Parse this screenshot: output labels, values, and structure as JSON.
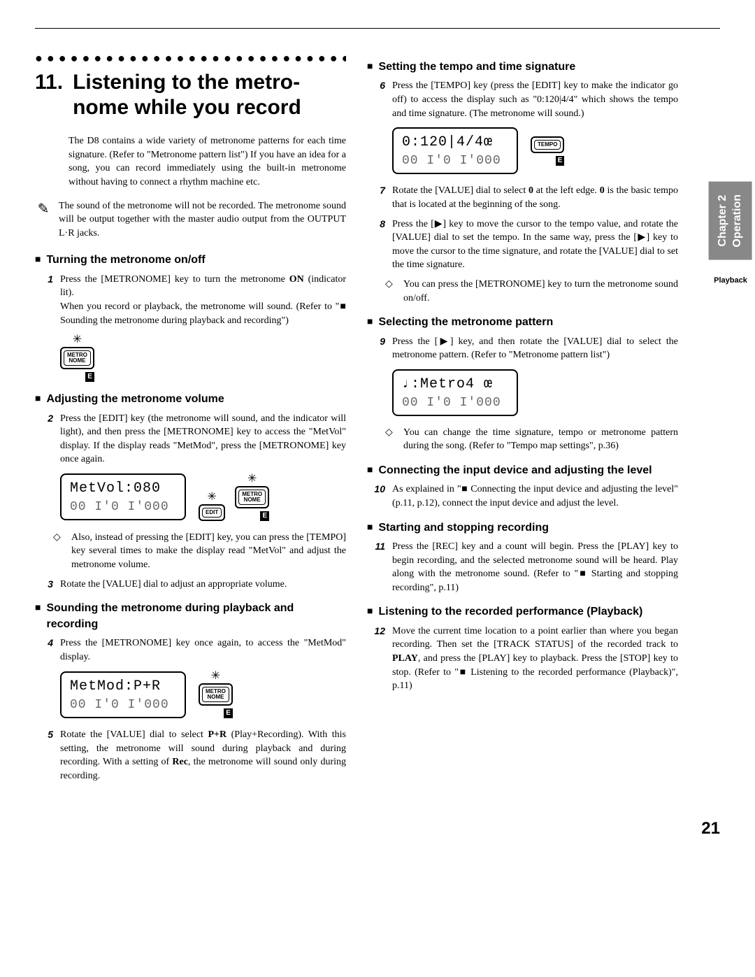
{
  "chapter_tab_line1": "Chapter 2",
  "chapter_tab_line2": "Operation",
  "playback_label": "Playback",
  "page_number": "21",
  "dots": "●●●●●●●●●●●●●●●●●●●●●●●●●●●●●●",
  "section": {
    "number": "11.",
    "title": "Listening to the metro­nome while you record"
  },
  "intro": "The D8 contains a wide variety of metronome pat­terns for each time signature. (Refer to \"Metro­nome pattern list\") If you have an idea for a song, you can record immediately using the built-in met­ronome without having to connect a rhythm machine etc.",
  "note": "The sound of the metronome will not be recorded. The metronome sound will be output together with the master audio output from the OUTPUT L·R jacks.",
  "h_turn": "Turning the metronome on/off",
  "step1a": "Press the [METRONOME] key to turn the metro­nome ",
  "step1b": "ON",
  "step1c": " (indicator lit).",
  "step1d": "When you record or playback, the metronome will sound. (Refer to \"■ Sounding the metronome dur­ing playback and recording\")",
  "h_adjust": "Adjusting the metronome volume",
  "step2": "Press the [EDIT] key (the metronome will sound, and the indicator will light), and then press the [METRONOME] key to access the \"MetVol\" dis­play. If the display reads \"MetMod\", press the [METRONOME] key once again.",
  "lcd_metvol": "MetVol:080",
  "lcd_counter": "00 I'0 I'000",
  "tip2": "Also, instead of pressing the [EDIT] key, you can press the [TEMPO] key several times to make the display read \"MetVol\" and adjust the metronome volume.",
  "step3": "Rotate the [VALUE] dial to adjust an appropriate volume.",
  "h_sound": "Sounding the metronome during playback and recording",
  "step4": "Press the [METRONOME] key once again, to access the \"MetMod\" display.",
  "lcd_metmod": "MetMod:P+R",
  "step5a": "Rotate the [VALUE] dial to select ",
  "step5b": "P+R",
  "step5c": " (Play+Recording). With this setting, the metro­nome will sound during playback and during recording. With a setting of ",
  "step5d": "Rec",
  "step5e": ", the metronome will sound only during recording.",
  "h_tempo": "Setting the tempo and time signature",
  "step6": "Press the [TEMPO] key (press the [EDIT] key to make the indicator go off) to access the display such as \"0:120|4/4\" which shows the tempo and time signature. (The metronome will sound.)",
  "lcd_tempo": "0:120|4/4œ",
  "step7a": "Rotate the [VALUE] dial to select ",
  "step7b": "0",
  "step7c": " at the left edge. ",
  "step7d": "0",
  "step7e": " is the basic tempo that is located at the beginning of the song.",
  "step8": "Press the [▶] key to move the cursor to the tempo value, and rotate the [VALUE] dial to set the tempo. In the same way, press the [▶] key to move the cursor to the time signature, and rotate the [VALUE] dial to set the time signature.",
  "tip8": "You can press the [METRONOME] key to turn the metronome sound on/off.",
  "h_select": "Selecting the metronome pattern",
  "step9": "Press the [▶] key, and then rotate the [VALUE] dial to select the metronome pattern. (Refer to \"Metronome pattern list\")",
  "lcd_metro4": "♩:Metro4 œ",
  "tip9": "You can change the time signature, tempo or met­ronome pattern during the song. (Refer to \"Tempo map settings\", p.36)",
  "h_connect": "Connecting the input device and adjusting the level",
  "step10": "As explained in \"■ Connecting the input device and adjusting the level\" (p.11, p.12), connect the input device and adjust the level.",
  "h_start": "Starting and stopping recording",
  "step11": "Press the [REC] key and a count will begin. Press the [PLAY] key to begin recording, and the selected metronome sound will be heard. Play along with the metronome sound. (Refer to \"■ Starting and stopping recording\", p.11)",
  "h_listen": "Listening to the recorded performance (Play­back)",
  "step12a": "Move the current time location to a point earlier than where you began recording. Then set the [TRACK STATUS] of the recorded track to ",
  "step12b": "PLAY",
  "step12c": ", and press the [PLAY] key to playback. Press the [STOP] key to stop. (Refer to \"■ Listening to the recorded performance (Playback)\", p.11)",
  "btn_metro": "METRO\nNOME",
  "btn_edit": "EDIT",
  "btn_tempo": "TEMPO",
  "btn_e": "E"
}
